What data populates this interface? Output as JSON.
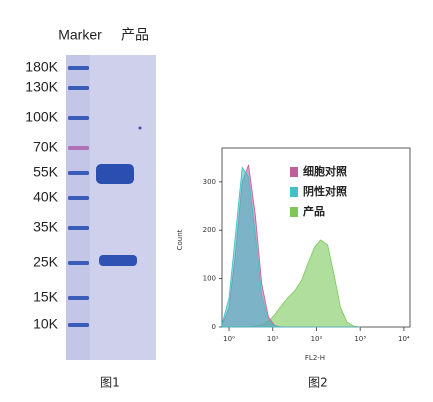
{
  "gel": {
    "headers": [
      "Marker",
      "产品"
    ],
    "marker_labels": [
      "180K",
      "130K",
      "100K",
      "70K",
      "55K",
      "40K",
      "35K",
      "25K",
      "15K",
      "10K"
    ],
    "caption": "图1"
  },
  "chart_data": {
    "type": "area",
    "caption": "图2",
    "xlabel": "FL2-H",
    "ylabel": "Count",
    "xscale": "log",
    "xlim": [
      0.69,
      13800
    ],
    "ylim": [
      0,
      370
    ],
    "xticks": [
      {
        "value": 1,
        "label": "10⁰"
      },
      {
        "value": 10,
        "label": "10¹"
      },
      {
        "value": 100,
        "label": "10²"
      },
      {
        "value": 1000,
        "label": "10³"
      },
      {
        "value": 10000,
        "label": "10⁴"
      }
    ],
    "yticks": [
      0,
      100,
      200,
      300
    ],
    "x": [
      0.7,
      1,
      1.4,
      2,
      2.8,
      4,
      5.6,
      8,
      11,
      16,
      22,
      32,
      45,
      63,
      90,
      125,
      180,
      250,
      355,
      500,
      710,
      1000
    ],
    "series": [
      {
        "name": "细胞对照",
        "color": "#c0609a",
        "values": [
          5,
          40,
          150,
          300,
          335,
          230,
          90,
          20,
          3,
          0,
          0,
          0,
          0,
          0,
          0,
          0,
          0,
          0,
          0,
          0,
          0,
          0
        ]
      },
      {
        "name": "阴性对照",
        "color": "#40c0c8",
        "values": [
          8,
          60,
          190,
          330,
          310,
          190,
          65,
          12,
          2,
          0,
          0,
          0,
          0,
          0,
          0,
          0,
          0,
          0,
          0,
          0,
          0,
          0
        ]
      },
      {
        "name": "产品",
        "color": "#7cc85a",
        "values": [
          0,
          0,
          0,
          0,
          0,
          2,
          5,
          12,
          25,
          45,
          60,
          75,
          95,
          130,
          165,
          180,
          170,
          110,
          40,
          10,
          2,
          0
        ]
      }
    ]
  }
}
